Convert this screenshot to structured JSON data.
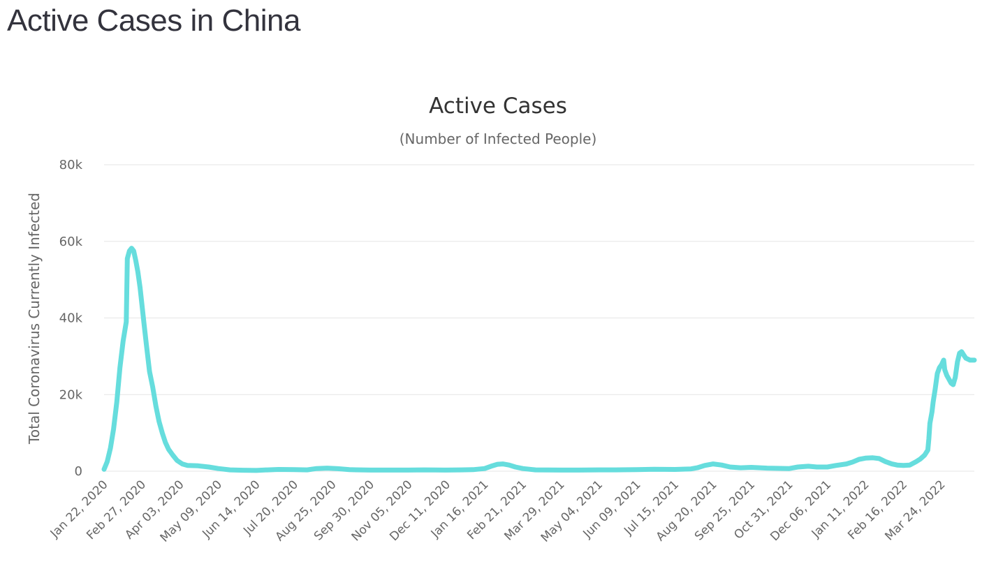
{
  "page": {
    "heading": "Active Cases in China"
  },
  "chart_data": {
    "type": "line",
    "title": "Active Cases",
    "subtitle": "(Number of Infected People)",
    "ylabel": "Total Coronavirus Currently Infected",
    "xlabel": "",
    "grid": true,
    "legend": "none",
    "ylim": [
      0,
      80000
    ],
    "yticks": [
      0,
      20000,
      40000,
      60000,
      80000
    ],
    "ytick_labels": [
      "0",
      "20k",
      "40k",
      "60k",
      "80k"
    ],
    "x_range": [
      "2020-01-22",
      "2022-04-24"
    ],
    "x_tick_labels": [
      "Jan 22, 2020",
      "Feb 27, 2020",
      "Apr 03, 2020",
      "May 09, 2020",
      "Jun 14, 2020",
      "Jul 20, 2020",
      "Aug 25, 2020",
      "Sep 30, 2020",
      "Nov 05, 2020",
      "Dec 11, 2020",
      "Jan 16, 2021",
      "Feb 21, 2021",
      "Mar 29, 2021",
      "May 04, 2021",
      "Jun 09, 2021",
      "Jul 15, 2021",
      "Aug 20, 2021",
      "Sep 25, 2021",
      "Oct 31, 2021",
      "Dec 06, 2021",
      "Jan 11, 2022",
      "Feb 16, 2022",
      "Mar 24, 2022"
    ],
    "series": [
      {
        "color": "#66dddd",
        "points": [
          [
            "2020-01-22",
            500
          ],
          [
            "2020-01-25",
            2500
          ],
          [
            "2020-01-28",
            6000
          ],
          [
            "2020-01-31",
            11000
          ],
          [
            "2020-02-03",
            18000
          ],
          [
            "2020-02-06",
            27000
          ],
          [
            "2020-02-09",
            34000
          ],
          [
            "2020-02-12",
            39000
          ],
          [
            "2020-02-13",
            55500
          ],
          [
            "2020-02-15",
            57500
          ],
          [
            "2020-02-17",
            58200
          ],
          [
            "2020-02-19",
            57500
          ],
          [
            "2020-02-21",
            55000
          ],
          [
            "2020-02-23",
            52000
          ],
          [
            "2020-02-25",
            48000
          ],
          [
            "2020-02-27",
            43000
          ],
          [
            "2020-02-29",
            38000
          ],
          [
            "2020-03-02",
            33000
          ],
          [
            "2020-03-05",
            26000
          ],
          [
            "2020-03-08",
            22000
          ],
          [
            "2020-03-11",
            17000
          ],
          [
            "2020-03-14",
            13000
          ],
          [
            "2020-03-17",
            10000
          ],
          [
            "2020-03-20",
            7500
          ],
          [
            "2020-03-23",
            5700
          ],
          [
            "2020-03-27",
            4200
          ],
          [
            "2020-03-31",
            2800
          ],
          [
            "2020-04-05",
            1900
          ],
          [
            "2020-04-10",
            1500
          ],
          [
            "2020-04-20",
            1400
          ],
          [
            "2020-04-30",
            1100
          ],
          [
            "2020-05-09",
            700
          ],
          [
            "2020-05-20",
            350
          ],
          [
            "2020-06-01",
            250
          ],
          [
            "2020-06-14",
            200
          ],
          [
            "2020-06-25",
            350
          ],
          [
            "2020-07-05",
            450
          ],
          [
            "2020-07-20",
            400
          ],
          [
            "2020-08-01",
            350
          ],
          [
            "2020-08-10",
            700
          ],
          [
            "2020-08-20",
            800
          ],
          [
            "2020-08-30",
            650
          ],
          [
            "2020-09-10",
            400
          ],
          [
            "2020-09-30",
            300
          ],
          [
            "2020-10-20",
            300
          ],
          [
            "2020-11-05",
            300
          ],
          [
            "2020-11-20",
            350
          ],
          [
            "2020-12-11",
            300
          ],
          [
            "2020-12-25",
            350
          ],
          [
            "2021-01-05",
            400
          ],
          [
            "2021-01-16",
            700
          ],
          [
            "2021-01-22",
            1300
          ],
          [
            "2021-01-28",
            1800
          ],
          [
            "2021-02-02",
            1900
          ],
          [
            "2021-02-08",
            1600
          ],
          [
            "2021-02-14",
            1100
          ],
          [
            "2021-02-21",
            700
          ],
          [
            "2021-03-05",
            350
          ],
          [
            "2021-03-29",
            300
          ],
          [
            "2021-04-15",
            300
          ],
          [
            "2021-05-04",
            350
          ],
          [
            "2021-05-20",
            350
          ],
          [
            "2021-06-09",
            400
          ],
          [
            "2021-06-25",
            500
          ],
          [
            "2021-07-15",
            450
          ],
          [
            "2021-07-30",
            600
          ],
          [
            "2021-08-05",
            900
          ],
          [
            "2021-08-12",
            1500
          ],
          [
            "2021-08-20",
            1900
          ],
          [
            "2021-08-28",
            1600
          ],
          [
            "2021-09-05",
            1100
          ],
          [
            "2021-09-15",
            900
          ],
          [
            "2021-09-25",
            1000
          ],
          [
            "2021-10-10",
            800
          ],
          [
            "2021-10-31",
            700
          ],
          [
            "2021-11-08",
            1100
          ],
          [
            "2021-11-18",
            1300
          ],
          [
            "2021-11-26",
            1100
          ],
          [
            "2021-12-06",
            1100
          ],
          [
            "2021-12-14",
            1500
          ],
          [
            "2021-12-24",
            1900
          ],
          [
            "2021-12-30",
            2400
          ],
          [
            "2022-01-05",
            3100
          ],
          [
            "2022-01-11",
            3400
          ],
          [
            "2022-01-18",
            3500
          ],
          [
            "2022-01-24",
            3300
          ],
          [
            "2022-01-30",
            2500
          ],
          [
            "2022-02-05",
            1900
          ],
          [
            "2022-02-10",
            1600
          ],
          [
            "2022-02-16",
            1500
          ],
          [
            "2022-02-22",
            1600
          ],
          [
            "2022-02-28",
            2500
          ],
          [
            "2022-03-04",
            3200
          ],
          [
            "2022-03-08",
            4200
          ],
          [
            "2022-03-11",
            5500
          ],
          [
            "2022-03-12",
            8500
          ],
          [
            "2022-03-13",
            12500
          ],
          [
            "2022-03-15",
            15500
          ],
          [
            "2022-03-16",
            18000
          ],
          [
            "2022-03-18",
            21500
          ],
          [
            "2022-03-20",
            25500
          ],
          [
            "2022-03-22",
            27000
          ],
          [
            "2022-03-24",
            27800
          ],
          [
            "2022-03-26",
            29000
          ],
          [
            "2022-03-27",
            26500
          ],
          [
            "2022-03-29",
            25000
          ],
          [
            "2022-03-31",
            24000
          ],
          [
            "2022-04-02",
            23000
          ],
          [
            "2022-04-04",
            22600
          ],
          [
            "2022-04-06",
            24500
          ],
          [
            "2022-04-08",
            28500
          ],
          [
            "2022-04-10",
            30800
          ],
          [
            "2022-04-12",
            31200
          ],
          [
            "2022-04-14",
            30300
          ],
          [
            "2022-04-16",
            29500
          ],
          [
            "2022-04-20",
            29000
          ],
          [
            "2022-04-24",
            29000
          ]
        ]
      }
    ]
  }
}
